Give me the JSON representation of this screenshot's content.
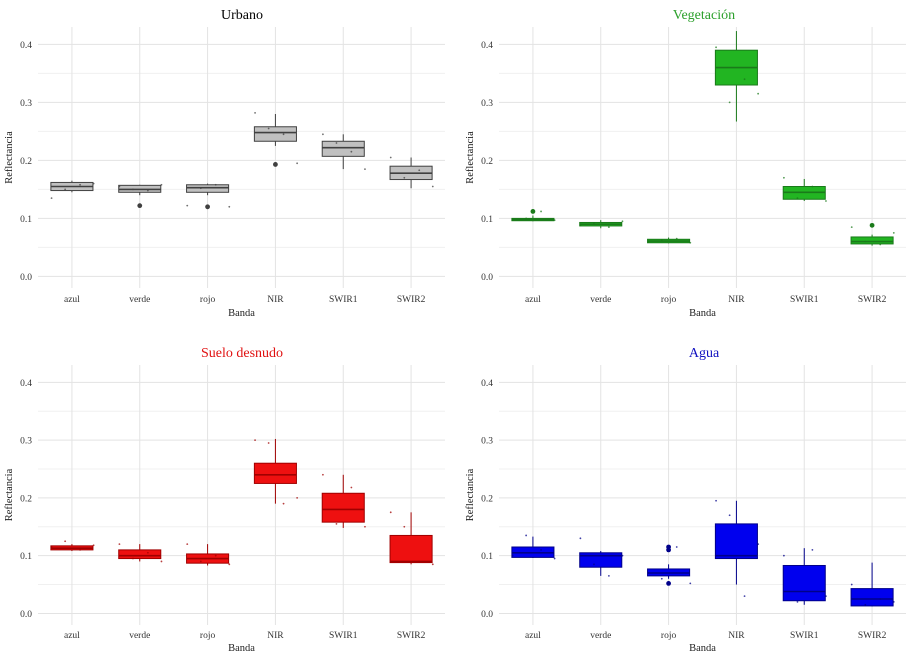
{
  "axis_labels": {
    "x": "Banda",
    "y": "Reflectancia"
  },
  "chart_data": [
    {
      "type": "boxplot",
      "title": "Urbano",
      "title_color": "#000000",
      "fill": "#c0c0c0",
      "stroke": "#404040",
      "xlabel": "Banda",
      "ylabel": "Reflectancia",
      "ylim": [
        -0.02,
        0.43
      ],
      "yticks": [
        0.0,
        0.1,
        0.2,
        0.3,
        0.4
      ],
      "categories": [
        "azul",
        "verde",
        "rojo",
        "NIR",
        "SWIR1",
        "SWIR2"
      ],
      "boxes": [
        {
          "min": 0.145,
          "q1": 0.148,
          "median": 0.155,
          "q3": 0.162,
          "max": 0.165,
          "outliers": []
        },
        {
          "min": 0.14,
          "q1": 0.145,
          "median": 0.15,
          "q3": 0.157,
          "max": 0.158,
          "outliers": [
            0.122
          ]
        },
        {
          "min": 0.14,
          "q1": 0.145,
          "median": 0.153,
          "q3": 0.158,
          "max": 0.16,
          "outliers": [
            0.12
          ]
        },
        {
          "min": 0.225,
          "q1": 0.233,
          "median": 0.248,
          "q3": 0.258,
          "max": 0.28,
          "outliers": [
            0.193
          ]
        },
        {
          "min": 0.185,
          "q1": 0.207,
          "median": 0.222,
          "q3": 0.233,
          "max": 0.245,
          "outliers": []
        },
        {
          "min": 0.152,
          "q1": 0.167,
          "median": 0.178,
          "q3": 0.19,
          "max": 0.205,
          "outliers": []
        }
      ],
      "points": [
        [
          0.135,
          0.15,
          0.158,
          0.16
        ],
        [
          0.155,
          0.15,
          0.148,
          0.158
        ],
        [
          0.122,
          0.152,
          0.158,
          0.12
        ],
        [
          0.282,
          0.255,
          0.245,
          0.195
        ],
        [
          0.245,
          0.23,
          0.215,
          0.185
        ],
        [
          0.205,
          0.17,
          0.183,
          0.155
        ]
      ]
    },
    {
      "type": "boxplot",
      "title": "Vegetación",
      "title_color": "#2ca02c",
      "fill": "#22b522",
      "stroke": "#1a7a1a",
      "xlabel": "Banda",
      "ylabel": "Reflectancia",
      "ylim": [
        -0.02,
        0.43
      ],
      "yticks": [
        0.0,
        0.1,
        0.2,
        0.3,
        0.4
      ],
      "categories": [
        "azul",
        "verde",
        "rojo",
        "NIR",
        "SWIR1",
        "SWIR2"
      ],
      "boxes": [
        {
          "min": 0.095,
          "q1": 0.096,
          "median": 0.098,
          "q3": 0.1,
          "max": 0.105,
          "outliers": [
            0.112
          ]
        },
        {
          "min": 0.083,
          "q1": 0.087,
          "median": 0.09,
          "q3": 0.093,
          "max": 0.097,
          "outliers": []
        },
        {
          "min": 0.057,
          "q1": 0.058,
          "median": 0.061,
          "q3": 0.064,
          "max": 0.067,
          "outliers": []
        },
        {
          "min": 0.267,
          "q1": 0.33,
          "median": 0.36,
          "q3": 0.39,
          "max": 0.423,
          "outliers": []
        },
        {
          "min": 0.13,
          "q1": 0.133,
          "median": 0.145,
          "q3": 0.155,
          "max": 0.168,
          "outliers": []
        },
        {
          "min": 0.053,
          "q1": 0.056,
          "median": 0.06,
          "q3": 0.068,
          "max": 0.072,
          "outliers": [
            0.088
          ]
        }
      ],
      "points": [
        [
          0.098,
          0.1,
          0.112,
          0.097
        ],
        [
          0.088,
          0.092,
          0.085,
          0.095
        ],
        [
          0.06,
          0.062,
          0.065,
          0.058
        ],
        [
          0.395,
          0.3,
          0.34,
          0.315
        ],
        [
          0.17,
          0.135,
          0.155,
          0.13
        ],
        [
          0.085,
          0.06,
          0.055,
          0.075
        ]
      ]
    },
    {
      "type": "boxplot",
      "title": "Suelo desnudo",
      "title_color": "#e01010",
      "fill": "#ee1010",
      "stroke": "#a00000",
      "xlabel": "Banda",
      "ylabel": "Reflectancia",
      "ylim": [
        -0.02,
        0.43
      ],
      "yticks": [
        0.0,
        0.1,
        0.2,
        0.3,
        0.4
      ],
      "categories": [
        "azul",
        "verde",
        "rojo",
        "NIR",
        "SWIR1",
        "SWIR2"
      ],
      "boxes": [
        {
          "min": 0.108,
          "q1": 0.11,
          "median": 0.113,
          "q3": 0.117,
          "max": 0.12,
          "outliers": []
        },
        {
          "min": 0.09,
          "q1": 0.095,
          "median": 0.1,
          "q3": 0.11,
          "max": 0.12,
          "outliers": []
        },
        {
          "min": 0.083,
          "q1": 0.087,
          "median": 0.095,
          "q3": 0.103,
          "max": 0.12,
          "outliers": []
        },
        {
          "min": 0.19,
          "q1": 0.225,
          "median": 0.24,
          "q3": 0.26,
          "max": 0.302,
          "outliers": []
        },
        {
          "min": 0.148,
          "q1": 0.158,
          "median": 0.18,
          "q3": 0.208,
          "max": 0.24,
          "outliers": []
        },
        {
          "min": 0.085,
          "q1": 0.088,
          "median": 0.09,
          "q3": 0.135,
          "max": 0.175,
          "outliers": []
        }
      ],
      "points": [
        [
          0.115,
          0.125,
          0.11,
          0.118
        ],
        [
          0.12,
          0.095,
          0.105,
          0.09
        ],
        [
          0.12,
          0.09,
          0.1,
          0.085
        ],
        [
          0.3,
          0.295,
          0.19,
          0.2
        ],
        [
          0.24,
          0.155,
          0.218,
          0.15
        ],
        [
          0.175,
          0.15,
          0.09,
          0.085
        ]
      ]
    },
    {
      "type": "boxplot",
      "title": "Agua",
      "title_color": "#1010c0",
      "fill": "#0000ee",
      "stroke": "#00008a",
      "xlabel": "Banda",
      "ylabel": "Reflectancia",
      "ylim": [
        -0.02,
        0.43
      ],
      "yticks": [
        0.0,
        0.1,
        0.2,
        0.3,
        0.4
      ],
      "categories": [
        "azul",
        "verde",
        "rojo",
        "NIR",
        "SWIR1",
        "SWIR2"
      ],
      "boxes": [
        {
          "min": 0.096,
          "q1": 0.097,
          "median": 0.105,
          "q3": 0.115,
          "max": 0.133,
          "outliers": []
        },
        {
          "min": 0.065,
          "q1": 0.08,
          "median": 0.1,
          "q3": 0.105,
          "max": 0.108,
          "outliers": []
        },
        {
          "min": 0.06,
          "q1": 0.065,
          "median": 0.07,
          "q3": 0.077,
          "max": 0.085,
          "outliers": [
            0.052,
            0.11,
            0.115
          ]
        },
        {
          "min": 0.05,
          "q1": 0.095,
          "median": 0.1,
          "q3": 0.155,
          "max": 0.195,
          "outliers": []
        },
        {
          "min": 0.015,
          "q1": 0.022,
          "median": 0.038,
          "q3": 0.083,
          "max": 0.113,
          "outliers": []
        },
        {
          "min": 0.012,
          "q1": 0.013,
          "median": 0.025,
          "q3": 0.043,
          "max": 0.088,
          "outliers": []
        }
      ],
      "points": [
        [
          0.1,
          0.135,
          0.11,
          0.095
        ],
        [
          0.13,
          0.085,
          0.065,
          0.1
        ],
        [
          0.07,
          0.06,
          0.115,
          0.052
        ],
        [
          0.195,
          0.17,
          0.03,
          0.12
        ],
        [
          0.1,
          0.02,
          0.11,
          0.03
        ],
        [
          0.05,
          0.015,
          0.025,
          0.02
        ]
      ]
    }
  ]
}
